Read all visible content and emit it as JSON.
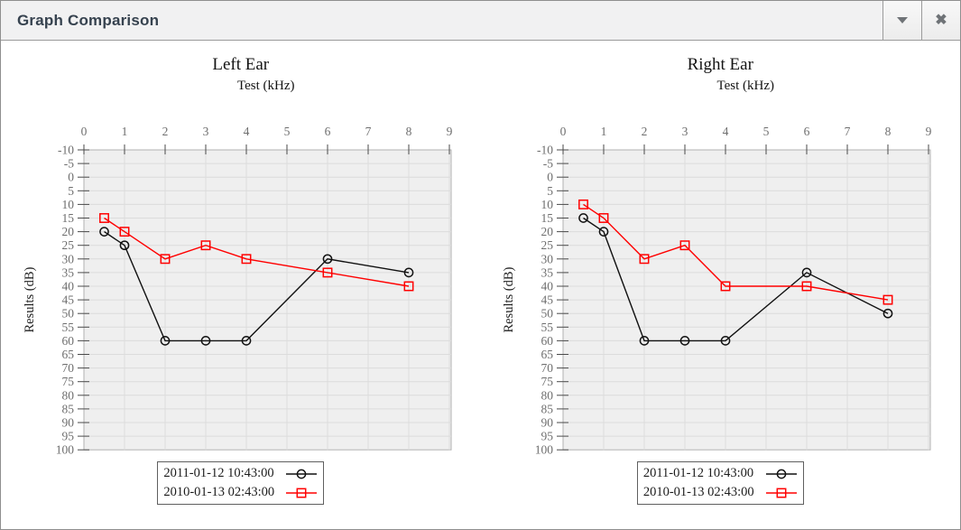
{
  "window": {
    "title": "Graph Comparison"
  },
  "titlebar": {
    "buttons": [
      {
        "name": "collapse",
        "icon": "triangle-down-icon"
      },
      {
        "name": "close",
        "icon": "close-icon"
      }
    ]
  },
  "colors": {
    "series_1": "#111111",
    "series_2": "#ff0000",
    "plot_bg": "#efefef",
    "grid_line": "#dcdcdc",
    "plot_border": "#b2b2b2",
    "axis_tick": "#4a4a4a",
    "tick_label": "#6e6e6e",
    "title_text": "#36424f"
  },
  "chart_data": [
    {
      "type": "line",
      "title": "Left Ear",
      "xlabel": "Test (kHz)",
      "ylabel": "Results (dB)",
      "x": [
        0.5,
        1,
        2,
        3,
        4,
        6,
        8
      ],
      "xlim": [
        0,
        9
      ],
      "xtick_step": 1,
      "ylim": [
        -10,
        100
      ],
      "ytick_step": 5,
      "y_inverted": true,
      "grid": true,
      "legend_position": "bottom",
      "series": [
        {
          "name": "2011-01-12 10:43:00",
          "marker": "circle",
          "color": "#111111",
          "values": [
            20,
            25,
            60,
            60,
            60,
            30,
            35
          ]
        },
        {
          "name": "2010-01-13 02:43:00",
          "marker": "square",
          "color": "#ff0000",
          "values": [
            15,
            20,
            30,
            25,
            30,
            35,
            40
          ]
        }
      ]
    },
    {
      "type": "line",
      "title": "Right Ear",
      "xlabel": "Test (kHz)",
      "ylabel": "Results (dB)",
      "x": [
        0.5,
        1,
        2,
        3,
        4,
        6,
        8
      ],
      "xlim": [
        0,
        9
      ],
      "xtick_step": 1,
      "ylim": [
        -10,
        100
      ],
      "ytick_step": 5,
      "y_inverted": true,
      "grid": true,
      "legend_position": "bottom",
      "series": [
        {
          "name": "2011-01-12 10:43:00",
          "marker": "circle",
          "color": "#111111",
          "values": [
            15,
            20,
            60,
            60,
            60,
            35,
            50
          ]
        },
        {
          "name": "2010-01-13 02:43:00",
          "marker": "square",
          "color": "#ff0000",
          "values": [
            10,
            15,
            30,
            25,
            40,
            40,
            45
          ]
        }
      ]
    }
  ]
}
